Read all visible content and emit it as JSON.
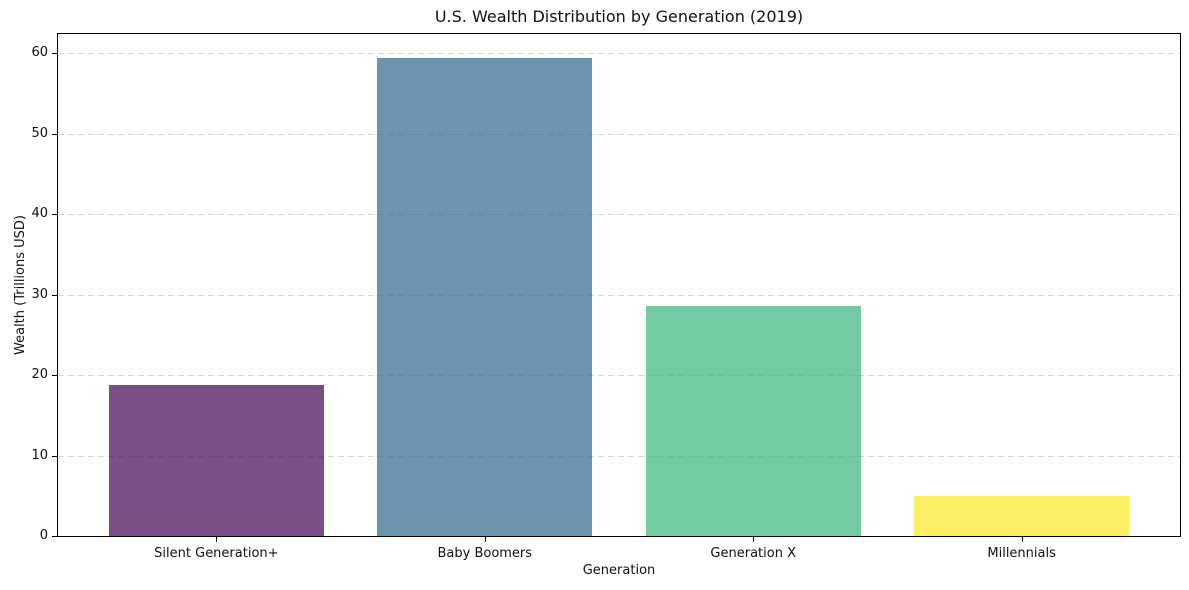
{
  "chart_data": {
    "type": "bar",
    "title": "U.S. Wealth Distribution by Generation (2019)",
    "xlabel": "Generation",
    "ylabel": "Wealth (Trillions USD)",
    "categories": [
      "Silent Generation+",
      "Baby Boomers",
      "Generation X",
      "Millennials"
    ],
    "values": [
      18.8,
      59.4,
      28.6,
      5.0
    ],
    "ylim": [
      0,
      62.4
    ],
    "yticks": [
      0,
      10,
      20,
      30,
      40,
      50,
      60
    ],
    "bar_colors": [
      "#440154",
      "#31688e",
      "#35b779",
      "#fde725"
    ],
    "bar_alpha": 0.7,
    "grid": {
      "axis": "y",
      "style": "dashed",
      "color": "#d7d7d7"
    },
    "legend_position": "none",
    "background": "#ffffff",
    "spine_color": "#000000",
    "text_color": "#111111"
  }
}
